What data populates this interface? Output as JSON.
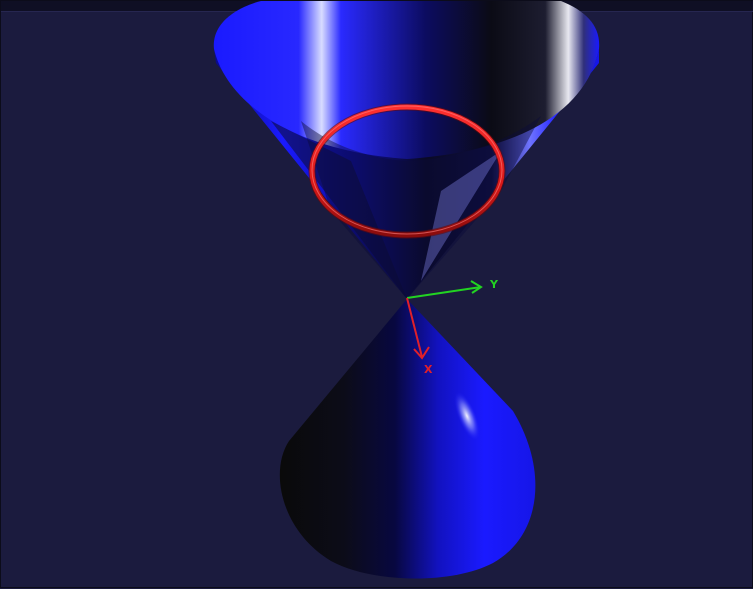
{
  "colors": {
    "background": "#1b1b3e",
    "cone": "#1a1aff",
    "circle": "#e01c1c",
    "axis_x": "#e0202a",
    "axis_y": "#22d322"
  },
  "axes": {
    "x_label": "X",
    "y_label": "Y"
  }
}
